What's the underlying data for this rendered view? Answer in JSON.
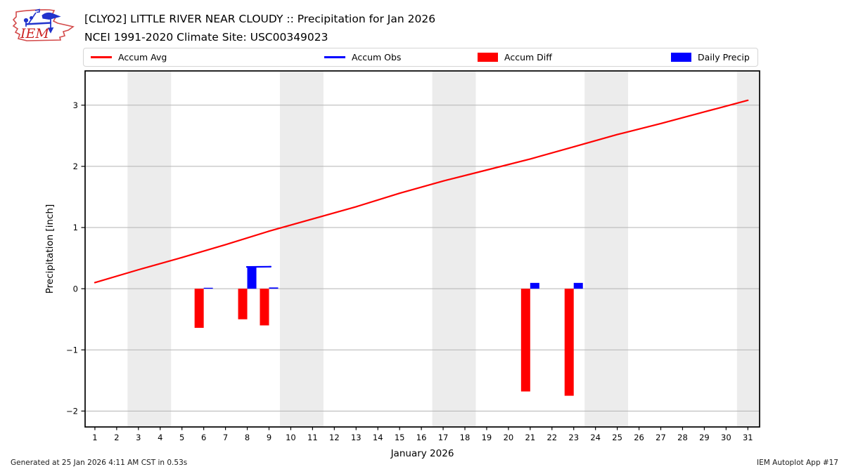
{
  "header": {
    "title": "[CLYO2] LITTLE RIVER NEAR CLOUDY :: Precipitation for Jan 2026",
    "subtitle": "NCEI 1991-2020 Climate Site: USC00349023",
    "logo_text": "IEM"
  },
  "legend": {
    "items": [
      {
        "label": "Accum Avg",
        "swatch": "line",
        "color": "#ff0000"
      },
      {
        "label": "Accum Obs",
        "swatch": "line",
        "color": "#0000ff"
      },
      {
        "label": "Accum Diff",
        "swatch": "patch",
        "color": "#ff0000"
      },
      {
        "label": "Daily Precip",
        "swatch": "patch",
        "color": "#0000ff"
      }
    ]
  },
  "footer": {
    "generated": "Generated at 25 Jan 2026 4:11 AM CST in 0.53s",
    "app": "IEM Autoplot App #17"
  },
  "chart_data": {
    "type": "line+bar",
    "title": "[CLYO2] LITTLE RIVER NEAR CLOUDY :: Precipitation for Jan 2026",
    "subtitle": "NCEI 1991-2020 Climate Site: USC00349023",
    "xlabel": "January 2026",
    "ylabel": "Precipitation [inch]",
    "xlim": [
      0.55,
      31.54
    ],
    "ylim": [
      -2.26,
      3.56
    ],
    "xticks": [
      1,
      2,
      3,
      4,
      5,
      6,
      7,
      8,
      9,
      10,
      11,
      12,
      13,
      14,
      15,
      16,
      17,
      18,
      19,
      20,
      21,
      22,
      23,
      24,
      25,
      26,
      27,
      28,
      29,
      30,
      31
    ],
    "yticks": [
      -2,
      -1,
      0,
      1,
      2,
      3
    ],
    "grid": "horizontal",
    "legend_position": "top",
    "weekend_bands": [
      [
        2.5,
        4.5
      ],
      [
        9.5,
        11.5
      ],
      [
        16.5,
        18.5
      ],
      [
        23.5,
        25.5
      ],
      [
        30.5,
        31.54
      ]
    ],
    "colors": {
      "accum_avg": "#ff0000",
      "accum_obs": "#0000ff",
      "accum_diff": "#ff0000",
      "daily_precip": "#0000ff",
      "weekend_band": "#ececec",
      "gridline": "#b3b3b3",
      "axis_border": "#000000"
    },
    "series": [
      {
        "name": "Accum Avg",
        "type": "line",
        "color": "#ff0000",
        "points": [
          [
            1,
            0.1
          ],
          [
            3,
            0.31
          ],
          [
            5,
            0.51
          ],
          [
            7,
            0.72
          ],
          [
            9,
            0.94
          ],
          [
            11,
            1.14
          ],
          [
            13,
            1.34
          ],
          [
            15,
            1.56
          ],
          [
            17,
            1.76
          ],
          [
            19,
            1.94
          ],
          [
            21,
            2.12
          ],
          [
            23,
            2.32
          ],
          [
            25,
            2.52
          ],
          [
            27,
            2.7
          ],
          [
            29,
            2.89
          ],
          [
            31,
            3.08
          ]
        ]
      },
      {
        "name": "Accum Obs",
        "type": "line",
        "color": "#0000ff",
        "segments": [
          [
            [
              7.98,
              0.356
            ],
            [
              9.08,
              0.36
            ]
          ]
        ]
      },
      {
        "name": "Accum Diff",
        "type": "bar",
        "color": "#ff0000",
        "side": "left",
        "bar_width_days": 0.42,
        "points": [
          [
            6,
            -0.64
          ],
          [
            8,
            -0.5
          ],
          [
            9,
            -0.6
          ],
          [
            21,
            -1.68
          ],
          [
            23,
            -1.75
          ]
        ]
      },
      {
        "name": "Daily Precip",
        "type": "bar",
        "color": "#0000ff",
        "side": "right",
        "bar_width_days": 0.42,
        "points": [
          [
            6,
            0.015
          ],
          [
            8,
            0.355
          ],
          [
            9,
            0.02
          ],
          [
            21,
            0.095
          ],
          [
            23,
            0.095
          ]
        ]
      }
    ]
  }
}
